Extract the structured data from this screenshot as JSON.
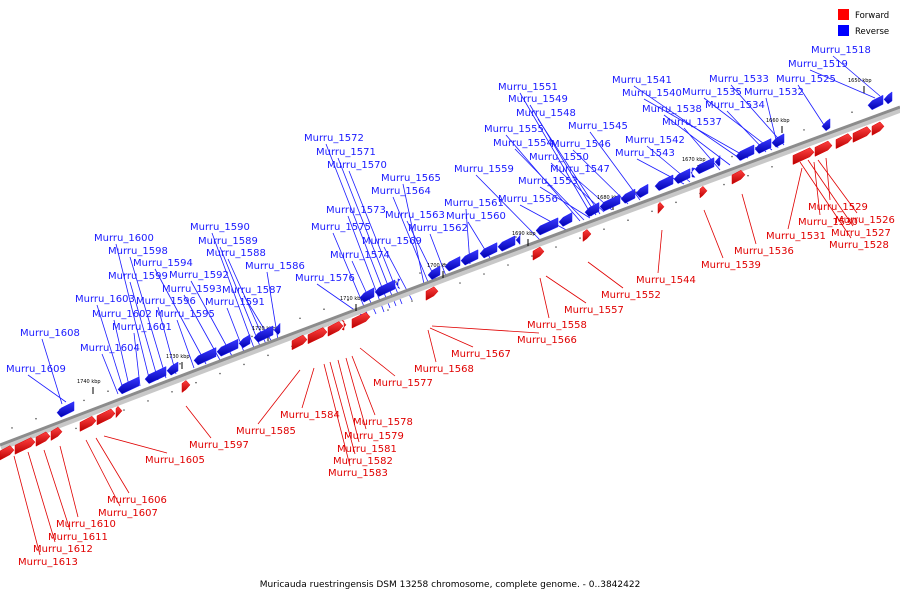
{
  "legend": [
    {
      "label": "Forward",
      "color": "#ff0000"
    },
    {
      "label": "Reverse",
      "color": "#0000ff"
    }
  ],
  "caption": "Muricauda ruestringensis DSM 13258 chromosome, complete genome. - 0..3842422",
  "colors": {
    "forward": "#e00000",
    "reverse": "#1a1aff",
    "axis": "#8c8c8c"
  },
  "ticks": [
    "1650 kbp",
    "1660 kbp",
    "1670 kbp",
    "1680 kbp",
    "1690 kbp",
    "1700 kbp",
    "1710 kbp",
    "1720 kbp",
    "1730 kbp",
    "1740 kbp"
  ],
  "genes": {
    "forward": [
      "Murru_1526",
      "Murru_1527",
      "Murru_1528",
      "Murru_1529",
      "Murru_1530",
      "Murru_1531",
      "Murru_1536",
      "Murru_1539",
      "Murru_1544",
      "Murru_1552",
      "Murru_1557",
      "Murru_1558",
      "Murru_1566",
      "Murru_1567",
      "Murru_1568",
      "Murru_1577",
      "Murru_1578",
      "Murru_1579",
      "Murru_1581",
      "Murru_1582",
      "Murru_1583",
      "Murru_1584",
      "Murru_1585",
      "Murru_1597",
      "Murru_1605",
      "Murru_1606",
      "Murru_1607",
      "Murru_1610",
      "Murru_1611",
      "Murru_1612",
      "Murru_1613"
    ],
    "reverse": [
      "Murru_1518",
      "Murru_1519",
      "Murru_1525",
      "Murru_1532",
      "Murru_1533",
      "Murru_1534",
      "Murru_1535",
      "Murru_1537",
      "Murru_1538",
      "Murru_1540",
      "Murru_1541",
      "Murru_1542",
      "Murru_1543",
      "Murru_1545",
      "Murru_1546",
      "Murru_1547",
      "Murru_1548",
      "Murru_1549",
      "Murru_1550",
      "Murru_1551",
      "Murru_1553",
      "Murru_1554",
      "Murru_1555",
      "Murru_1556",
      "Murru_1559",
      "Murru_1560",
      "Murru_1561",
      "Murru_1562",
      "Murru_1563",
      "Murru_1564",
      "Murru_1565",
      "Murru_1569",
      "Murru_1570",
      "Murru_1571",
      "Murru_1572",
      "Murru_1573",
      "Murru_1574",
      "Murru_1575",
      "Murru_1576",
      "Murru_1586",
      "Murru_1587",
      "Murru_1588",
      "Murru_1589",
      "Murru_1590",
      "Murru_1591",
      "Murru_1592",
      "Murru_1593",
      "Murru_1594",
      "Murru_1595",
      "Murru_1596",
      "Murru_1598",
      "Murru_1599",
      "Murru_1600",
      "Murru_1601",
      "Murru_1602",
      "Murru_1603",
      "Murru_1604",
      "Murru_1608",
      "Murru_1609"
    ]
  }
}
